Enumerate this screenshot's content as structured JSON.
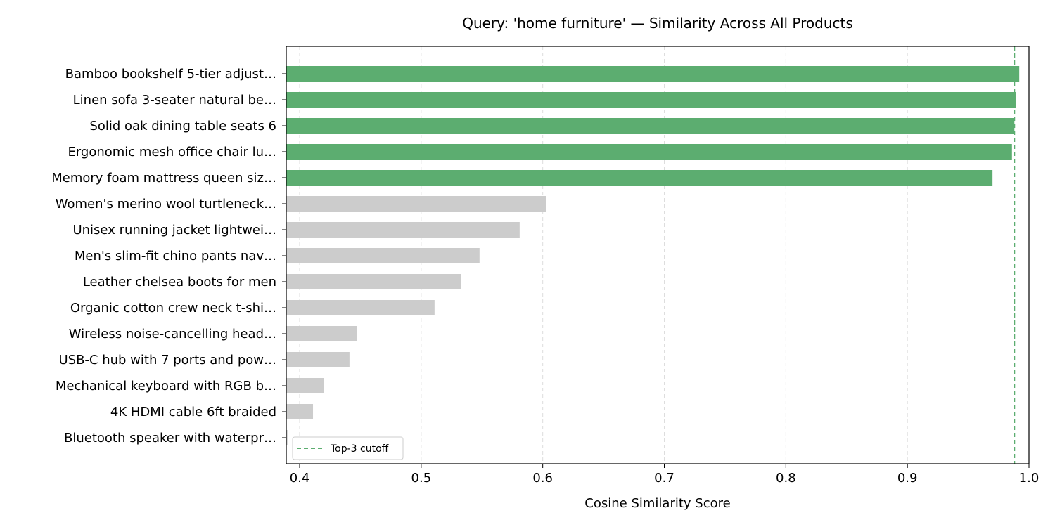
{
  "chart_data": {
    "type": "bar",
    "orientation": "horizontal",
    "title": "Query: 'home furniture' — Similarity Across All Products",
    "xlabel": "Cosine Similarity Score",
    "ylabel": "",
    "xlim": [
      0.389,
      1.0
    ],
    "xticks": [
      "0.4",
      "0.5",
      "0.6",
      "0.7",
      "0.8",
      "0.9",
      "1.0"
    ],
    "grid": "vertical dashed",
    "categories": [
      "Bamboo bookshelf 5-tier adjust…",
      "Linen sofa 3-seater natural be…",
      "Solid oak dining table seats 6",
      "Ergonomic mesh office chair lu…",
      "Memory foam mattress queen siz…",
      "Women's merino wool turtleneck…",
      "Unisex running jacket lightwei…",
      "Men's slim-fit chino pants nav…",
      "Leather chelsea boots for men",
      "Organic cotton crew neck t-shi…",
      "Wireless noise-cancelling head…",
      "USB-C hub with 7 ports and pow…",
      "Mechanical keyboard with RGB b…",
      "4K HDMI cable 6ft braided",
      "Bluetooth speaker with waterpr…"
    ],
    "values": [
      0.992,
      0.989,
      0.988,
      0.986,
      0.97,
      0.603,
      0.581,
      0.548,
      0.533,
      0.511,
      0.447,
      0.441,
      0.42,
      0.411,
      0.39
    ],
    "highlight_count": 5,
    "colors": {
      "highlight": "#5cad70",
      "other": "#cccccc",
      "cutoff": "#5cad70"
    },
    "cutoff": {
      "value": 0.988,
      "label": "Top-3 cutoff",
      "style": "dashed"
    },
    "legend": {
      "placement": "lower-left",
      "entries": [
        "Top-3 cutoff"
      ]
    }
  }
}
